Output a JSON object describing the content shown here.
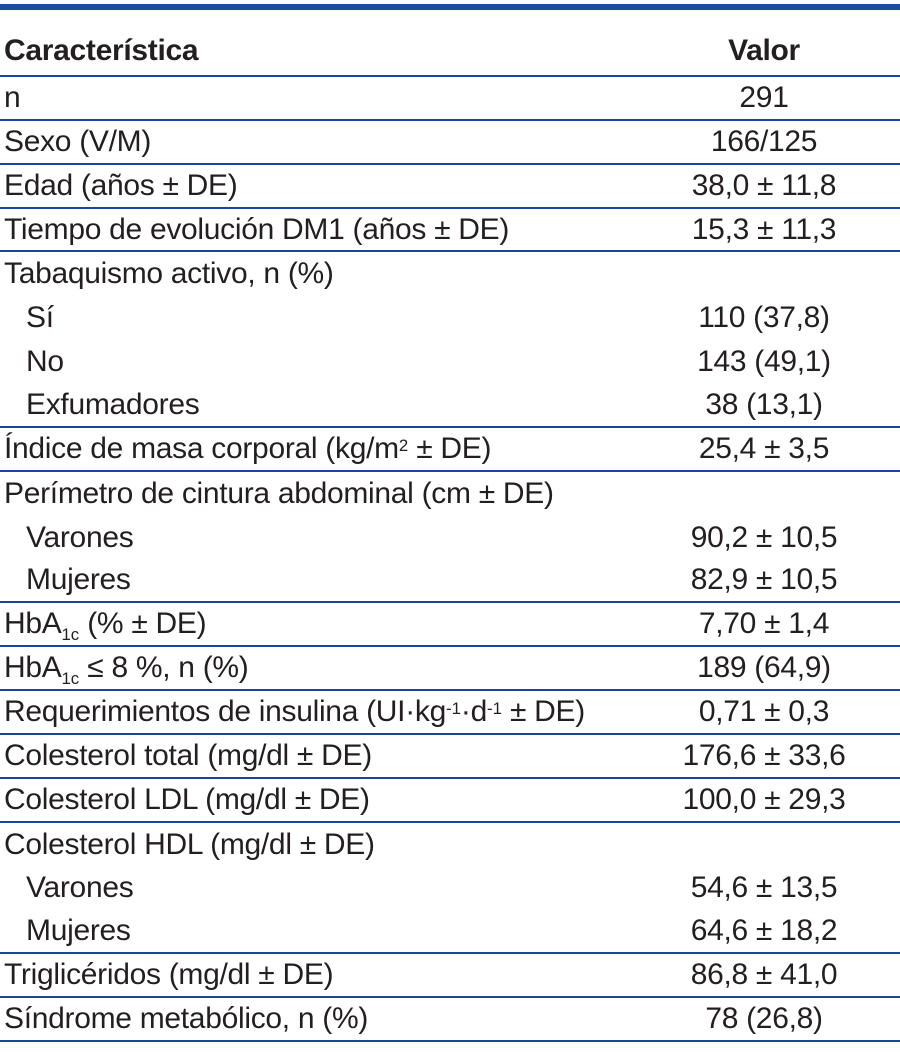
{
  "page": {
    "background_color": "#ffffff",
    "rule_color": "#1c4499",
    "top_bar_color": "#1b4d9e",
    "text_color": "#231f20"
  },
  "table": {
    "header": {
      "characteristic": "Característica",
      "value": "Valor"
    },
    "rows": [
      {
        "segments": [
          {
            "t": "n"
          }
        ],
        "value": "291",
        "indent": false,
        "rule_below": true
      },
      {
        "segments": [
          {
            "t": "Sexo (V/M)"
          }
        ],
        "value": "166/125",
        "indent": false,
        "rule_below": true
      },
      {
        "segments": [
          {
            "t": "Edad (años ± DE)"
          }
        ],
        "value": "38,0 ± 11,8",
        "indent": false,
        "rule_below": true
      },
      {
        "segments": [
          {
            "t": "Tiempo de evolución DM1 (años ± DE)"
          }
        ],
        "value": "15,3 ± 11,3",
        "indent": false,
        "rule_below": true
      },
      {
        "segments": [
          {
            "t": "Tabaquismo activo, n (%)"
          }
        ],
        "value": "",
        "indent": false,
        "rule_below": false
      },
      {
        "segments": [
          {
            "t": "Sí"
          }
        ],
        "value": "110 (37,8)",
        "indent": true,
        "rule_below": false
      },
      {
        "segments": [
          {
            "t": "No"
          }
        ],
        "value": "143 (49,1)",
        "indent": true,
        "rule_below": false
      },
      {
        "segments": [
          {
            "t": "Exfumadores"
          }
        ],
        "value": "38 (13,1)",
        "indent": true,
        "rule_below": true
      },
      {
        "segments": [
          {
            "t": "Índice de masa corporal (kg/m"
          },
          {
            "t": "2",
            "s": "sup"
          },
          {
            "t": " ± DE)"
          }
        ],
        "value": "25,4 ± 3,5",
        "indent": false,
        "rule_below": true
      },
      {
        "segments": [
          {
            "t": "Perímetro de cintura abdominal (cm ± DE)"
          }
        ],
        "value": "",
        "indent": false,
        "rule_below": false
      },
      {
        "segments": [
          {
            "t": "Varones"
          }
        ],
        "value": "90,2 ± 10,5",
        "indent": true,
        "rule_below": false
      },
      {
        "segments": [
          {
            "t": "Mujeres"
          }
        ],
        "value": "82,9 ± 10,5",
        "indent": true,
        "rule_below": true
      },
      {
        "segments": [
          {
            "t": "HbA"
          },
          {
            "t": "1c",
            "s": "sub"
          },
          {
            "t": " (% ± DE)"
          }
        ],
        "value": "7,70 ± 1,4",
        "indent": false,
        "rule_below": true
      },
      {
        "segments": [
          {
            "t": "HbA"
          },
          {
            "t": "1c",
            "s": "sub"
          },
          {
            "t": " ≤ 8 %, n (%)"
          }
        ],
        "value": "189 (64,9)",
        "indent": false,
        "rule_below": true
      },
      {
        "segments": [
          {
            "t": "Requerimientos de insulina (UI·kg"
          },
          {
            "t": "-1",
            "s": "sup"
          },
          {
            "t": "·d"
          },
          {
            "t": "-1",
            "s": "sup"
          },
          {
            "t": " ± DE)"
          }
        ],
        "value": "0,71 ± 0,3",
        "indent": false,
        "rule_below": true
      },
      {
        "segments": [
          {
            "t": "Colesterol total (mg/dl ± DE)"
          }
        ],
        "value": "176,6 ± 33,6",
        "indent": false,
        "rule_below": true
      },
      {
        "segments": [
          {
            "t": "Colesterol LDL (mg/dl ± DE)"
          }
        ],
        "value": "100,0 ± 29,3",
        "indent": false,
        "rule_below": true
      },
      {
        "segments": [
          {
            "t": "Colesterol HDL (mg/dl ± DE)"
          }
        ],
        "value": "",
        "indent": false,
        "rule_below": false
      },
      {
        "segments": [
          {
            "t": "Varones"
          }
        ],
        "value": "54,6 ± 13,5",
        "indent": true,
        "rule_below": false
      },
      {
        "segments": [
          {
            "t": "Mujeres"
          }
        ],
        "value": "64,6 ± 18,2",
        "indent": true,
        "rule_below": true
      },
      {
        "segments": [
          {
            "t": "Triglicéridos (mg/dl ± DE)"
          }
        ],
        "value": "86,8 ± 41,0",
        "indent": false,
        "rule_below": true
      },
      {
        "segments": [
          {
            "t": "Síndrome metabólico, n (%)"
          }
        ],
        "value": "78 (26,8)",
        "indent": false,
        "rule_below": true
      }
    ]
  }
}
